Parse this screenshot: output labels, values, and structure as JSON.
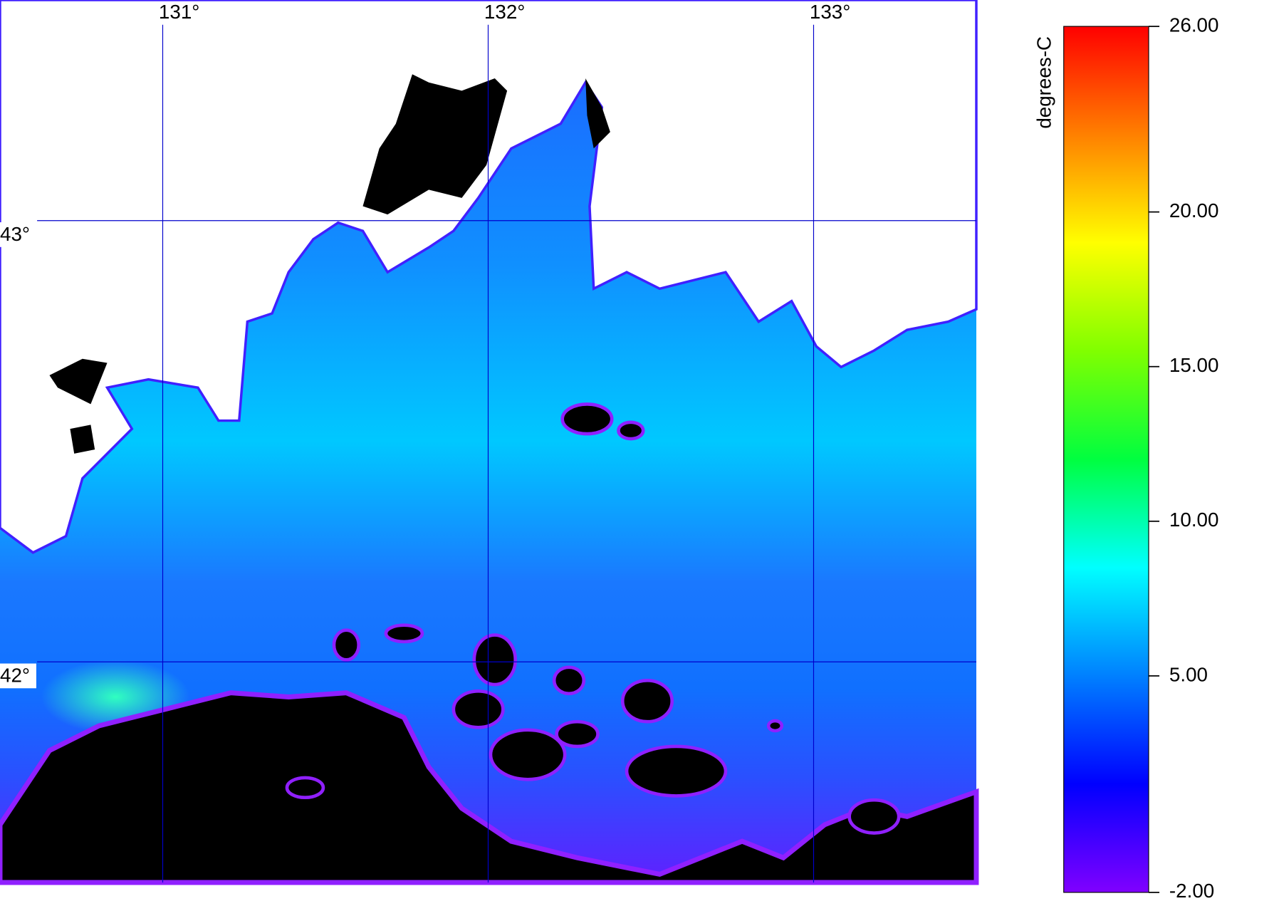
{
  "map": {
    "xlim": [
      130.5,
      133.5
    ],
    "ylim": [
      41.5,
      43.5
    ],
    "lon_ticks": [
      {
        "value": 131,
        "label": "131°"
      },
      {
        "value": 132,
        "label": "132°"
      },
      {
        "value": 133,
        "label": "133°"
      }
    ],
    "lat_ticks": [
      {
        "value": 43,
        "label": "43°"
      },
      {
        "value": 42,
        "label": "42°"
      }
    ],
    "grid_color": "#0000cc"
  },
  "colorbar": {
    "label": "degrees-C",
    "lim": [
      -2,
      26
    ],
    "ticks": [
      {
        "value": 26,
        "label": "26.00"
      },
      {
        "value": 20,
        "label": "20.00"
      },
      {
        "value": 15,
        "label": "15.00"
      },
      {
        "value": 10,
        "label": "10.00"
      },
      {
        "value": 5,
        "label": "5.00"
      },
      {
        "value": -2,
        "label": "-2.00"
      }
    ],
    "colors": [
      "#8000ff",
      "#0000ff",
      "#0080ff",
      "#00ffff",
      "#00ff40",
      "#80ff00",
      "#ffff00",
      "#ff8000",
      "#ff0000"
    ]
  }
}
